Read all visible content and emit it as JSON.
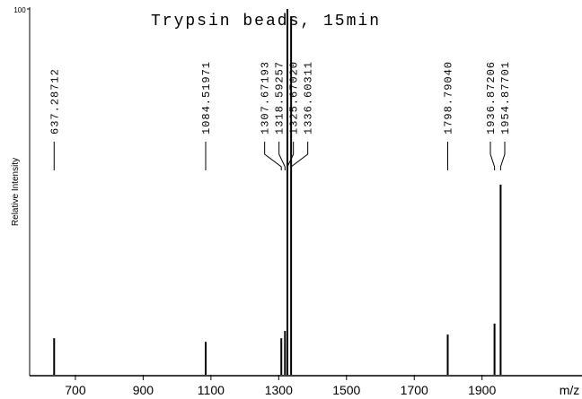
{
  "chart_data": {
    "type": "spectrum",
    "title": "Trypsin beads, 15min",
    "ylabel": "Relative Intensity",
    "xlabel": "m/z",
    "x": [
      637.28712,
      1084.51971,
      1307.67193,
      1318.59257,
      1325.6702,
      1336.60311,
      1798.7904,
      1936.87206,
      1954.87701
    ],
    "peak_labels": [
      "637.28712",
      "1084.51971",
      "1307.67193",
      "1318.59257",
      "1325.67020",
      "1336.60311",
      "1798.79040",
      "1936.87206",
      "1954.87701"
    ],
    "values": [
      10,
      9,
      10,
      12,
      100,
      98,
      11,
      14,
      52
    ],
    "color": "#000000",
    "xlim": [
      565,
      2195
    ],
    "xticks": [
      700,
      900,
      1100,
      1300,
      1500,
      1700,
      1900
    ],
    "ylim": [
      0,
      100
    ],
    "yticks": [
      100
    ]
  }
}
